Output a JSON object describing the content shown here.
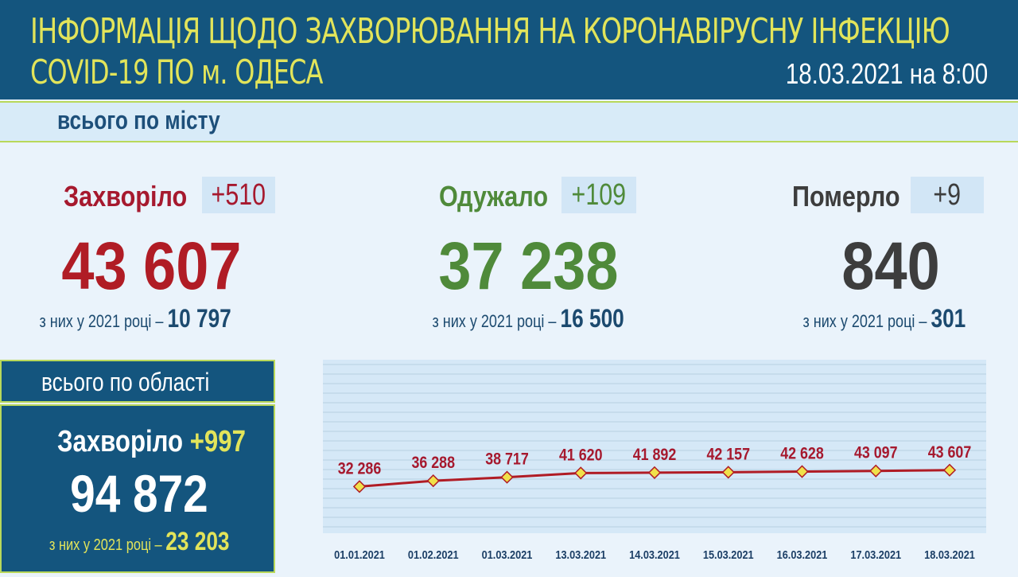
{
  "header": {
    "title_line1": "ІНФОРМАЦІЯ ЩОДО ЗАХВОРЮВАННЯ НА КОРОНАВІРУСНУ ІНФЕКЦІЮ",
    "title_line2": "COVID-19 ПО м. ОДЕСА",
    "date": "18.03.2021 на 8:00"
  },
  "city": {
    "section_label": "всього по місту",
    "sick": {
      "label": "Захворіло",
      "delta": "+510",
      "total": "43 607",
      "since_text": "з них у 2021 році –",
      "since_value": "10 797"
    },
    "recovered": {
      "label": "Одужало",
      "delta": "+109",
      "total": "37 238",
      "since_text": "з них у 2021 році –",
      "since_value": "16 500"
    },
    "died": {
      "label": "Померло",
      "delta": "+9",
      "total": "840",
      "since_text": "з них у 2021 році –",
      "since_value": "301"
    }
  },
  "region": {
    "section_label": "всього по області",
    "sick_label": "Захворіло",
    "sick_delta": "+997",
    "total": "94 872",
    "since_text": "з них у 2021 році –",
    "since_value": "23 203"
  },
  "colors": {
    "header_bg": "#14557e",
    "title": "#e2e45a",
    "sick": "#a6192e",
    "recovered": "#4f8a3a",
    "died": "#3d3d3d",
    "line": "#b01c25",
    "marker": "#f0e14a"
  },
  "chart_data": {
    "type": "line",
    "categories": [
      "01.01.2021",
      "01.02.2021",
      "01.03.2021",
      "13.03.2021",
      "14.03.2021",
      "15.03.2021",
      "16.03.2021",
      "17.03.2021",
      "18.03.2021"
    ],
    "values": [
      32286,
      36288,
      38717,
      41620,
      41892,
      42157,
      42628,
      43097,
      43607
    ],
    "value_labels": [
      "32 286",
      "36 288",
      "38 717",
      "41 620",
      "41 892",
      "42 157",
      "42 628",
      "43 097",
      "43 607"
    ],
    "grid": true,
    "title": "",
    "xlabel": "",
    "ylabel": ""
  }
}
